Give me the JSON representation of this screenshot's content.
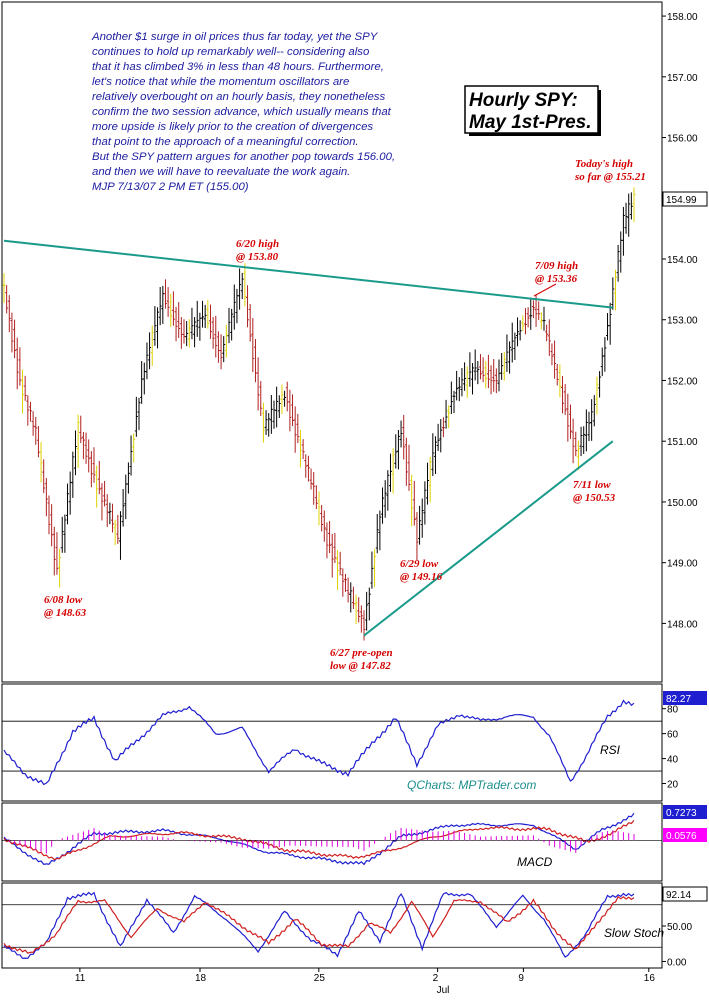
{
  "commentary": [
    "Another $1 surge in oil prices thus far today, yet the SPY",
    "continues to hold up remarkably well-- considering also",
    "that it has climbed 3% in less than 48 hours. Furthermore,",
    "let's notice that while the momentum oscillators are",
    "relatively overbought on an hourly basis, they nonetheless",
    "confirm the two session advance, which usually means that",
    "more upside is likely prior to the creation of divergences",
    "that point to the approach of a meaningful correction.",
    "But the SPY pattern argues for another pop towards 156.00,",
    "and then we will have to reevaluate the work again.",
    "MJP  7/13/07  2 PM ET  (155.00)"
  ],
  "title_box": [
    "Hourly SPY:",
    "May 1st-Pres."
  ],
  "credit": "QCharts: MPTrader.com",
  "colors": {
    "bars": "#000000",
    "bars_down": "#b02020",
    "bars_pre": "#e0d000",
    "trendline": "#1a9a8a",
    "annotation": "#d40000",
    "commentary": "#1c1ca0",
    "rsi": "#1f1fd0",
    "macd": "#1f1fd0",
    "macd_signal": "#d01f1f",
    "histogram": "#e000e0",
    "stoch_k": "#1f1fd0",
    "stoch_d": "#d01f1f",
    "badge_blue": "#1f1fd0",
    "badge_pink": "#ff00ff"
  },
  "chart_data": [
    {
      "type": "ohlc",
      "ylim": [
        147.2,
        158.1
      ],
      "yticks": [
        "158.00",
        "157.00",
        "156.00",
        "155.00",
        "154.00",
        "153.00",
        "152.00",
        "151.00",
        "150.00",
        "149.00",
        "148.00"
      ],
      "ytick_values": [
        158,
        157,
        156,
        155,
        154,
        153,
        152,
        151,
        150,
        149,
        148
      ],
      "xticks": [
        "11",
        "18",
        "25",
        "2",
        "9",
        "16"
      ],
      "xticks_sub": [
        "Jul"
      ],
      "last_value": "154.99",
      "pivots": [
        {
          "i": 0,
          "v": 153.5
        },
        {
          "i": 6,
          "v": 152.0
        },
        {
          "i": 12,
          "v": 151.1
        },
        {
          "i": 20,
          "v": 148.9
        },
        {
          "i": 28,
          "v": 151.2
        },
        {
          "i": 36,
          "v": 150.2
        },
        {
          "i": 43,
          "v": 149.4
        },
        {
          "i": 52,
          "v": 152.0
        },
        {
          "i": 60,
          "v": 153.4
        },
        {
          "i": 68,
          "v": 152.7
        },
        {
          "i": 76,
          "v": 153.1
        },
        {
          "i": 82,
          "v": 152.4
        },
        {
          "i": 90,
          "v": 153.7
        },
        {
          "i": 98,
          "v": 151.2
        },
        {
          "i": 106,
          "v": 151.8
        },
        {
          "i": 114,
          "v": 150.6
        },
        {
          "i": 122,
          "v": 149.4
        },
        {
          "i": 130,
          "v": 148.5
        },
        {
          "i": 136,
          "v": 148.0
        },
        {
          "i": 142,
          "v": 149.8
        },
        {
          "i": 150,
          "v": 151.2
        },
        {
          "i": 156,
          "v": 149.4
        },
        {
          "i": 162,
          "v": 150.8
        },
        {
          "i": 170,
          "v": 151.8
        },
        {
          "i": 178,
          "v": 152.2
        },
        {
          "i": 186,
          "v": 152.0
        },
        {
          "i": 194,
          "v": 152.8
        },
        {
          "i": 200,
          "v": 153.2
        },
        {
          "i": 204,
          "v": 152.9
        },
        {
          "i": 210,
          "v": 151.9
        },
        {
          "i": 216,
          "v": 150.8
        },
        {
          "i": 222,
          "v": 151.4
        },
        {
          "i": 228,
          "v": 152.9
        },
        {
          "i": 234,
          "v": 154.6
        },
        {
          "i": 238,
          "v": 155.0
        }
      ],
      "bar_count": 239,
      "annotations": [
        {
          "lines": [
            "6/08 low",
            "@ 148.63"
          ],
          "date": "6/08",
          "value": 148.63
        },
        {
          "lines": [
            "6/20 high",
            "@ 153.80"
          ],
          "date": "6/20",
          "value": 153.8
        },
        {
          "lines": [
            "6/27 pre-open",
            "low @ 147.82"
          ],
          "date": "6/27",
          "value": 147.82
        },
        {
          "lines": [
            "6/29 low",
            "@ 149.16"
          ],
          "date": "6/29",
          "value": 149.16
        },
        {
          "lines": [
            "7/09 high",
            "@ 153.36"
          ],
          "date": "7/09",
          "value": 153.36
        },
        {
          "lines": [
            "7/11 low",
            "@ 150.53"
          ],
          "date": "7/11",
          "value": 150.53
        },
        {
          "lines": [
            "Today's high",
            "so far @ 155.21"
          ],
          "date": "7/13",
          "value": 155.21
        }
      ],
      "trendlines": [
        {
          "name": "resistance",
          "start": {
            "i": 0,
            "v": 154.3
          },
          "end": {
            "i": 230,
            "v": 153.2
          }
        },
        {
          "name": "support",
          "start": {
            "i": 136,
            "v": 147.8
          },
          "end": {
            "i": 230,
            "v": 151.0
          }
        }
      ]
    },
    {
      "type": "line",
      "label": "RSI",
      "ylim": [
        10,
        95
      ],
      "yticks": [
        "80",
        "60",
        "40",
        "20"
      ],
      "ytick_values": [
        80,
        60,
        40,
        20
      ],
      "reference_lines": [
        70,
        30
      ],
      "last_value": "82.27",
      "pivots": [
        {
          "i": 0,
          "v": 45
        },
        {
          "i": 8,
          "v": 28
        },
        {
          "i": 16,
          "v": 18
        },
        {
          "i": 26,
          "v": 62
        },
        {
          "i": 34,
          "v": 72
        },
        {
          "i": 42,
          "v": 38
        },
        {
          "i": 52,
          "v": 58
        },
        {
          "i": 60,
          "v": 74
        },
        {
          "i": 70,
          "v": 82
        },
        {
          "i": 80,
          "v": 60
        },
        {
          "i": 90,
          "v": 64
        },
        {
          "i": 100,
          "v": 30
        },
        {
          "i": 110,
          "v": 48
        },
        {
          "i": 120,
          "v": 36
        },
        {
          "i": 130,
          "v": 28
        },
        {
          "i": 140,
          "v": 55
        },
        {
          "i": 148,
          "v": 72
        },
        {
          "i": 156,
          "v": 36
        },
        {
          "i": 164,
          "v": 66
        },
        {
          "i": 172,
          "v": 76
        },
        {
          "i": 180,
          "v": 70
        },
        {
          "i": 190,
          "v": 74
        },
        {
          "i": 200,
          "v": 74
        },
        {
          "i": 206,
          "v": 58
        },
        {
          "i": 214,
          "v": 22
        },
        {
          "i": 220,
          "v": 42
        },
        {
          "i": 228,
          "v": 74
        },
        {
          "i": 234,
          "v": 86
        },
        {
          "i": 238,
          "v": 82
        }
      ]
    },
    {
      "type": "line",
      "label": "MACD",
      "ylim": [
        -1.1,
        1.0
      ],
      "last_value": "0.7273",
      "last_value_2": "0.0576",
      "series": [
        {
          "pivots": [
            {
              "i": 0,
              "v": 0.05
            },
            {
              "i": 16,
              "v": -0.75
            },
            {
              "i": 34,
              "v": 0.2
            },
            {
              "i": 60,
              "v": 0.28
            },
            {
              "i": 82,
              "v": 0.05
            },
            {
              "i": 100,
              "v": -0.35
            },
            {
              "i": 125,
              "v": -0.6
            },
            {
              "i": 136,
              "v": -0.7
            },
            {
              "i": 150,
              "v": 0.1
            },
            {
              "i": 170,
              "v": 0.45
            },
            {
              "i": 200,
              "v": 0.45
            },
            {
              "i": 216,
              "v": -0.25
            },
            {
              "i": 226,
              "v": 0.3
            },
            {
              "i": 238,
              "v": 0.73
            }
          ]
        },
        {
          "pivots": [
            {
              "i": 0,
              "v": 0.05
            },
            {
              "i": 20,
              "v": -0.55
            },
            {
              "i": 40,
              "v": 0.1
            },
            {
              "i": 66,
              "v": 0.22
            },
            {
              "i": 90,
              "v": 0.05
            },
            {
              "i": 108,
              "v": -0.3
            },
            {
              "i": 132,
              "v": -0.5
            },
            {
              "i": 146,
              "v": -0.3
            },
            {
              "i": 162,
              "v": 0.1
            },
            {
              "i": 180,
              "v": 0.36
            },
            {
              "i": 206,
              "v": 0.32
            },
            {
              "i": 220,
              "v": -0.05
            },
            {
              "i": 230,
              "v": 0.2
            },
            {
              "i": 238,
              "v": 0.58
            }
          ]
        }
      ]
    },
    {
      "type": "line",
      "label": "Slow Stoch",
      "ylim": [
        -5,
        105
      ],
      "yticks": [
        "50.00",
        "0.00"
      ],
      "ytick_values": [
        50,
        0
      ],
      "reference_lines": [
        80,
        20
      ],
      "last_value": "92.14",
      "series": [
        {
          "pivots": [
            {
              "i": 0,
              "v": 20
            },
            {
              "i": 8,
              "v": 5
            },
            {
              "i": 16,
              "v": 25
            },
            {
              "i": 24,
              "v": 90
            },
            {
              "i": 34,
              "v": 95
            },
            {
              "i": 44,
              "v": 20
            },
            {
              "i": 54,
              "v": 88
            },
            {
              "i": 64,
              "v": 40
            },
            {
              "i": 72,
              "v": 92
            },
            {
              "i": 84,
              "v": 60
            },
            {
              "i": 96,
              "v": 15
            },
            {
              "i": 106,
              "v": 70
            },
            {
              "i": 116,
              "v": 30
            },
            {
              "i": 126,
              "v": 10
            },
            {
              "i": 134,
              "v": 70
            },
            {
              "i": 142,
              "v": 30
            },
            {
              "i": 150,
              "v": 95
            },
            {
              "i": 158,
              "v": 20
            },
            {
              "i": 166,
              "v": 95
            },
            {
              "i": 176,
              "v": 95
            },
            {
              "i": 186,
              "v": 50
            },
            {
              "i": 196,
              "v": 92
            },
            {
              "i": 204,
              "v": 60
            },
            {
              "i": 212,
              "v": 5
            },
            {
              "i": 220,
              "v": 40
            },
            {
              "i": 228,
              "v": 92
            },
            {
              "i": 234,
              "v": 95
            },
            {
              "i": 238,
              "v": 92
            }
          ]
        },
        {
          "pivots": [
            {
              "i": 0,
              "v": 25
            },
            {
              "i": 10,
              "v": 10
            },
            {
              "i": 20,
              "v": 40
            },
            {
              "i": 28,
              "v": 85
            },
            {
              "i": 38,
              "v": 85
            },
            {
              "i": 48,
              "v": 35
            },
            {
              "i": 58,
              "v": 75
            },
            {
              "i": 68,
              "v": 55
            },
            {
              "i": 76,
              "v": 85
            },
            {
              "i": 90,
              "v": 50
            },
            {
              "i": 100,
              "v": 25
            },
            {
              "i": 110,
              "v": 60
            },
            {
              "i": 120,
              "v": 25
            },
            {
              "i": 130,
              "v": 20
            },
            {
              "i": 138,
              "v": 55
            },
            {
              "i": 146,
              "v": 40
            },
            {
              "i": 154,
              "v": 85
            },
            {
              "i": 162,
              "v": 35
            },
            {
              "i": 170,
              "v": 85
            },
            {
              "i": 180,
              "v": 85
            },
            {
              "i": 190,
              "v": 55
            },
            {
              "i": 200,
              "v": 85
            },
            {
              "i": 208,
              "v": 45
            },
            {
              "i": 216,
              "v": 15
            },
            {
              "i": 224,
              "v": 55
            },
            {
              "i": 232,
              "v": 88
            },
            {
              "i": 238,
              "v": 90
            }
          ]
        }
      ]
    }
  ]
}
